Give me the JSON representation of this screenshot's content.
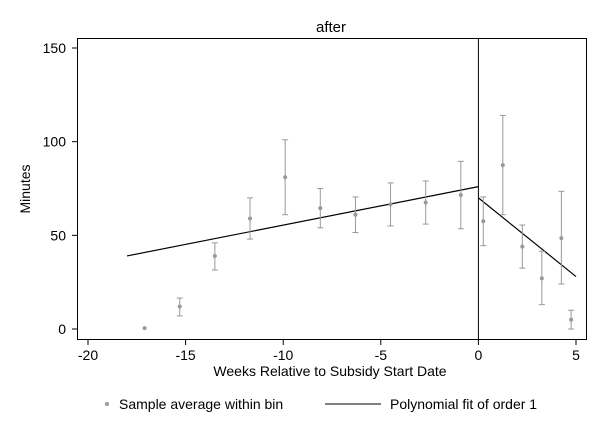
{
  "chart_data": {
    "type": "scatter",
    "title": "after",
    "xlabel": "Weeks Relative to Subsidy Start Date",
    "ylabel": "Minutes",
    "xlim": [
      -20,
      5
    ],
    "ylim": [
      0,
      150
    ],
    "xticks": [
      -20,
      -15,
      -10,
      -5,
      0,
      5
    ],
    "yticks": [
      0,
      50,
      100,
      150
    ],
    "grid": false,
    "cutoff": 0,
    "legend": {
      "placement": "bottom",
      "entries": [
        "Sample average within bin",
        "Polynomial fit of order 1"
      ]
    },
    "series": [
      {
        "name": "Sample average within bin",
        "kind": "points-with-ci",
        "color": "#999999",
        "points": [
          {
            "x": -17.1,
            "y": 0.5,
            "lo": 0.5,
            "hi": 0.5
          },
          {
            "x": -15.3,
            "y": 12,
            "lo": 7,
            "hi": 16.5
          },
          {
            "x": -13.5,
            "y": 39,
            "lo": 31.5,
            "hi": 46
          },
          {
            "x": -11.7,
            "y": 59,
            "lo": 48,
            "hi": 70
          },
          {
            "x": -9.9,
            "y": 81,
            "lo": 61,
            "hi": 101
          },
          {
            "x": -8.1,
            "y": 64.5,
            "lo": 54,
            "hi": 75
          },
          {
            "x": -6.3,
            "y": 61,
            "lo": 51.5,
            "hi": 70.5
          },
          {
            "x": -4.5,
            "y": 66.5,
            "lo": 55,
            "hi": 78
          },
          {
            "x": -2.7,
            "y": 67.5,
            "lo": 56,
            "hi": 79
          },
          {
            "x": -0.9,
            "y": 71.5,
            "lo": 53.5,
            "hi": 89.5
          },
          {
            "x": 0.25,
            "y": 57.5,
            "lo": 44.5,
            "hi": 70.5
          },
          {
            "x": 1.25,
            "y": 87.5,
            "lo": 61,
            "hi": 114
          },
          {
            "x": 2.25,
            "y": 44,
            "lo": 32.5,
            "hi": 55.5
          },
          {
            "x": 3.25,
            "y": 27,
            "lo": 13,
            "hi": 41.5
          },
          {
            "x": 4.25,
            "y": 48.5,
            "lo": 24,
            "hi": 73.5
          },
          {
            "x": 4.75,
            "y": 5,
            "lo": 0,
            "hi": 10
          }
        ]
      },
      {
        "name": "Polynomial fit of order 1",
        "kind": "fit-lines",
        "color": "#000000",
        "segments": [
          {
            "x": [
              -18,
              0
            ],
            "y": [
              39,
              76
            ]
          },
          {
            "x": [
              0,
              5
            ],
            "y": [
              70,
              28
            ]
          }
        ]
      }
    ]
  }
}
